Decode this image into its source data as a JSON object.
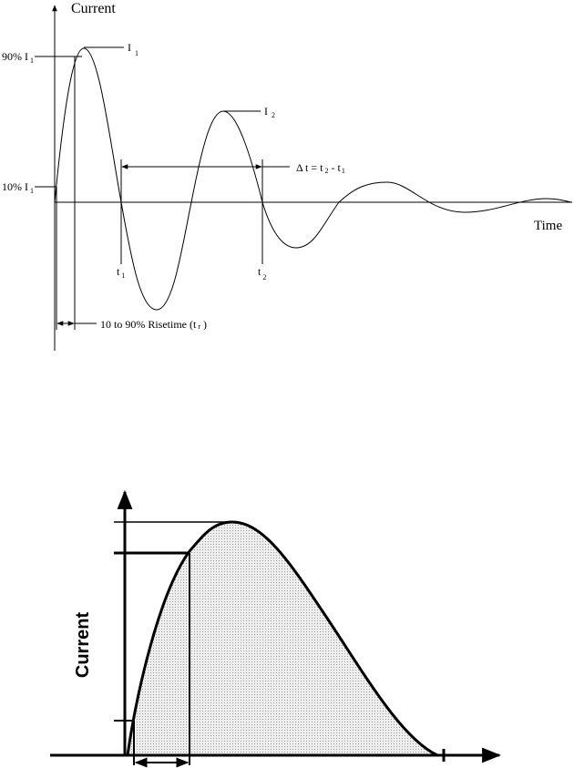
{
  "top_diagram": {
    "y_axis_label": "Current",
    "x_axis_label": "Time",
    "level_90": {
      "text": "90% I",
      "sub": "1"
    },
    "level_10": {
      "text": "10% I",
      "sub": "1"
    },
    "peak_1": {
      "text": "I",
      "sub": "1"
    },
    "peak_2": {
      "text": "I",
      "sub": "2"
    },
    "interval": {
      "text": "Δ t = t",
      "sub_a": "2",
      "mid": " - t",
      "sub_b": "1"
    },
    "crossing_1": {
      "text": "t",
      "sub": "1"
    },
    "crossing_2": {
      "text": "t",
      "sub": "2"
    },
    "risetime": {
      "text": "10 to 90% Risetime (t",
      "sub": "r",
      "close": " )"
    }
  },
  "bottom_diagram": {
    "y_axis_label": "Current"
  }
}
